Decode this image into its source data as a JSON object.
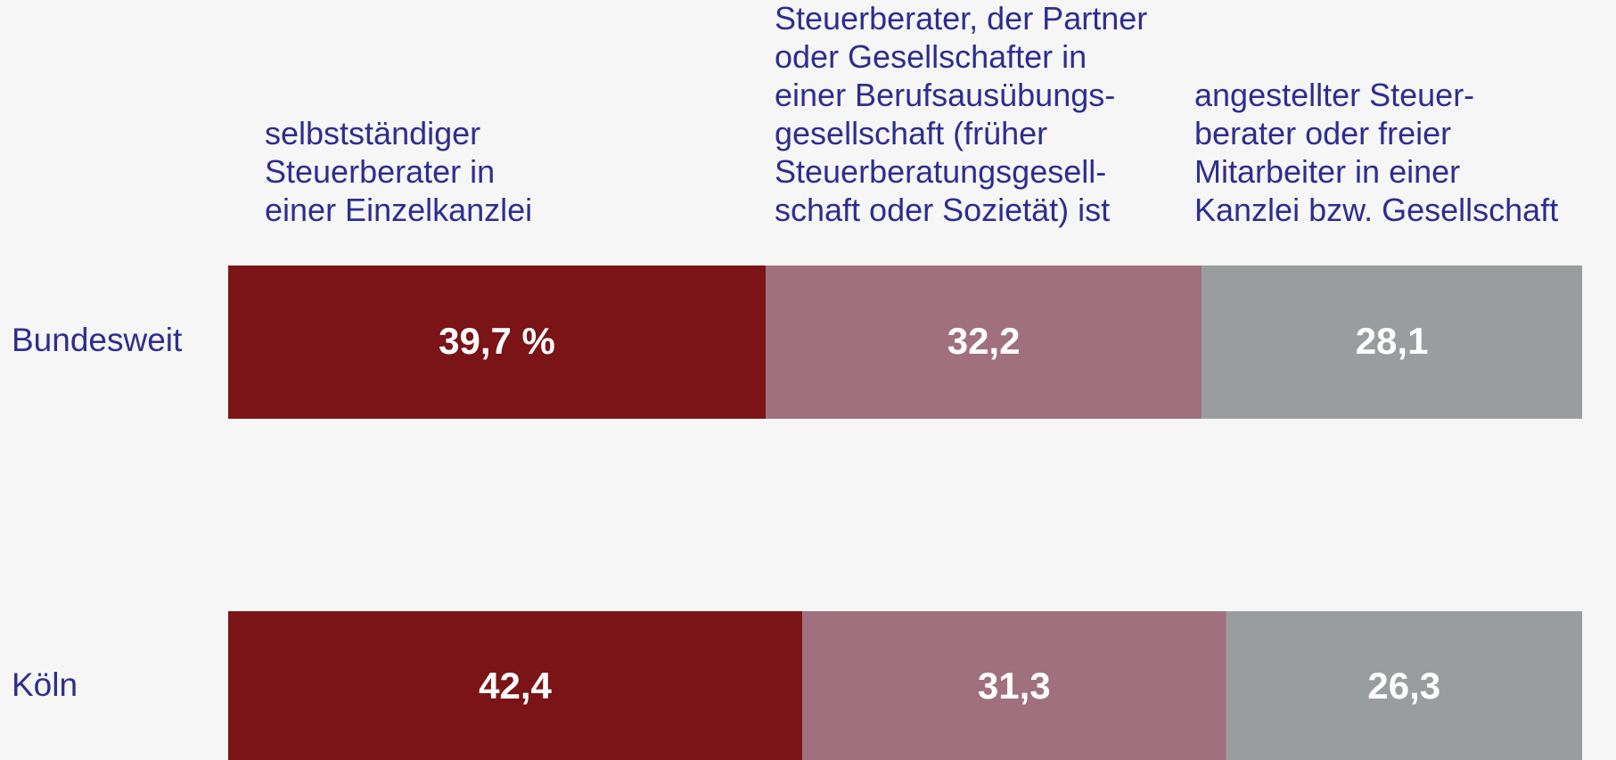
{
  "chart_data": {
    "type": "stacked-bar-horizontal",
    "categories": [
      "Bundesweit",
      "Köln"
    ],
    "xlim": [
      0,
      100
    ],
    "series": [
      {
        "name": "selbstständiger\nSteuerberater in\neiner Einzelkanzlei",
        "color": "#7b1416",
        "values": [
          39.7,
          42.4
        ],
        "value_labels": [
          "39,7 %",
          "42,4"
        ]
      },
      {
        "name": "Steuerberater, der Partner\noder Gesellschafter in\neiner Berufsausübungs-\ngesellschaft (früher\nSteuerberatungsgesell-\nschaft oder Sozietät) ist",
        "color": "#a0707e",
        "values": [
          32.2,
          31.3
        ],
        "value_labels": [
          "32,2",
          "31,3"
        ]
      },
      {
        "name": "angestellter Steuer-\nberater oder freier\nMitarbeiter in einer\nKanzlei bzw. Gesellschaft",
        "color": "#9a9d9e",
        "values": [
          28.1,
          26.3
        ],
        "value_labels": [
          "28,1",
          "26,3"
        ]
      }
    ]
  }
}
